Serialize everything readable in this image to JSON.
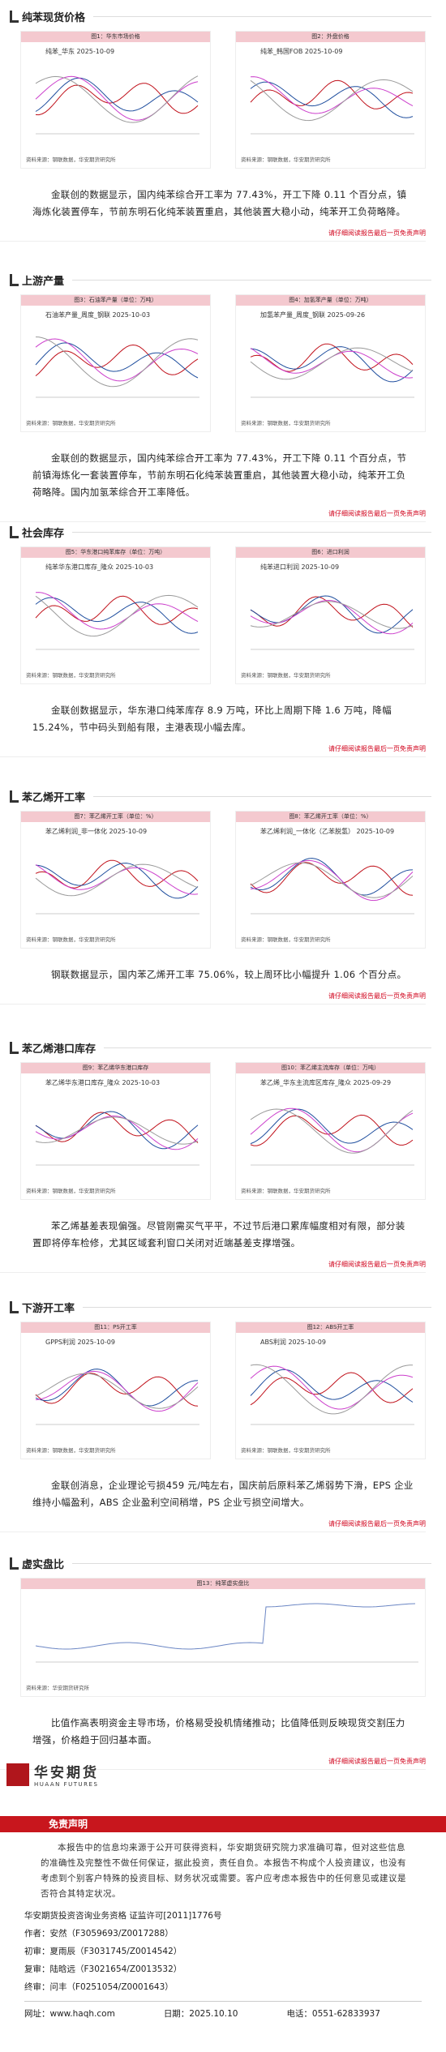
{
  "sections": [
    {
      "heading": "纯苯现货价格",
      "figures": [
        {
          "label": "图1：华东市场价格",
          "title": "纯苯_华东 2025-10-09",
          "source": "资料来源：钢联数据，华安期货研究所"
        },
        {
          "label": "图2：外盘价格",
          "title": "纯苯_韩国FOB 2025-10-09",
          "source": "资料来源：钢联数据，华安期货研究所"
        }
      ],
      "paragraph": "金联创的数据显示，国内纯苯综合开工率为 77.43%，开工下降 0.11 个百分点，镇海炼化装置停车，节前东明石化纯苯装置重启，其他装置大稳小动，纯苯开工负荷略降。",
      "notice": "请仔细阅读报告最后一页免责声明"
    },
    {
      "heading": "上游产量",
      "figures": [
        {
          "label": "图3：石油苯产量（单位：万吨）",
          "title": "石油苯产量_周度_钢联 2025-10-03",
          "source": "资料来源：钢联数据，华安期货研究所"
        },
        {
          "label": "图4：加氢苯产量（单位：万吨）",
          "title": "加氢苯产量_周度_钢联 2025-09-26",
          "source": "资料来源：钢联数据，华安期货研究所"
        }
      ],
      "paragraph": "金联创的数据显示，国内纯苯综合开工率为 77.43%，开工下降 0.11 个百分点，节前镇海炼化一套装置停车，节前东明石化纯苯装置重启，其他装置大稳小动，纯苯开工负荷略降。国内加氢苯综合开工率降低。",
      "notice": "请仔细阅读报告最后一页免责声明"
    },
    {
      "heading": "社会库存",
      "figures": [
        {
          "label": "图5：华东港口纯苯库存（单位：万吨）",
          "title": "纯苯华东港口库存_隆众 2025-10-03",
          "source": "资料来源：钢联数据，华安期货研究所"
        },
        {
          "label": "图6：进口利润",
          "title": "纯苯进口利润 2025-10-09",
          "source": "资料来源：钢联数据，华安期货研究所"
        }
      ],
      "paragraph": "金联创数据显示，华东港口纯苯库存 8.9 万吨，环比上周期下降 1.6 万吨，降幅 15.24%，节中码头到船有限，主港表现小幅去库。",
      "notice": "请仔细阅读报告最后一页免责声明"
    },
    {
      "heading": "苯乙烯开工率",
      "figures": [
        {
          "label": "图7：苯乙烯开工率（单位：%）",
          "title": "苯乙烯利润_非一体化 2025-10-09",
          "source": "资料来源：钢联数据，华安期货研究所"
        },
        {
          "label": "图8：苯乙烯开工率（单位：%）",
          "title": "苯乙烯利润_一体化（乙苯脱氢） 2025-10-09",
          "source": "资料来源：钢联数据，华安期货研究所"
        }
      ],
      "paragraph": "钢联数据显示，国内苯乙烯开工率 75.06%，较上周环比小幅提升 1.06 个百分点。",
      "notice": "请仔细阅读报告最后一页免责声明"
    },
    {
      "heading": "苯乙烯港口库存",
      "figures": [
        {
          "label": "图9：苯乙烯华东港口库存",
          "title": "苯乙烯华东港口库存_隆众 2025-10-03",
          "source": "资料来源：钢联数据，华安期货研究所"
        },
        {
          "label": "图10：苯乙烯主流库存（单位：万吨）",
          "title": "苯乙烯_华东主流库区库存_隆众 2025-09-29",
          "source": "资料来源：钢联数据，华安期货研究所"
        }
      ],
      "paragraph": "苯乙烯基差表现偏强。尽管刚需买气平平，不过节后港口累库幅度相对有限，部分装置即将停车检修，尤其区域套利窗口关闭对近端基差支撑增强。",
      "notice": "请仔细阅读报告最后一页免责声明"
    },
    {
      "heading": "下游开工率",
      "figures": [
        {
          "label": "图11：PS开工率",
          "title": "GPPS利润 2025-10-09",
          "source": "资料来源：钢联数据，华安期货研究所"
        },
        {
          "label": "图12：ABS开工率",
          "title": "ABS利润 2025-10-09",
          "source": "资料来源：钢联数据，华安期货研究所"
        }
      ],
      "paragraph": "金联创消息，企业理论亏损459 元/吨左右，国庆前后原料苯乙烯弱势下滑，EPS 企业维持小幅盈利，ABS 企业盈利空间稍增，PS 企业亏损空间增大。",
      "notice": "请仔细阅读报告最后一页免责声明"
    },
    {
      "heading": "虚实盘比",
      "figures": [
        {
          "label": "图13：纯苯虚实盘比",
          "title": "",
          "source": "资料来源：华安期货研究所"
        }
      ],
      "paragraph": "比值作高表明资金主导市场，价格易受投机情绪推动；比值降低则反映现货交割压力增强，价格趋于回归基本面。",
      "notice": "请仔细阅读报告最后一页免责声明"
    }
  ],
  "footer": {
    "logo_cn": "华安期货",
    "logo_en": "HUAAN FUTURES",
    "disclaimer_title": "免责声明",
    "disclaimer": "本报告中的信息均来源于公开可获得资料，华安期货研究院力求准确可靠，但对这些信息的准确性及完整性不做任何保证，据此投资，责任自负。本报告不构成个人投资建议，也没有考虑到个别客户特殊的投资目标、财务状况或需要。客户应考虑本报告中的任何意见或建议是否符合其特定状况。",
    "qualification": "华安期货投资咨询业务资格 证监许可[2011]1776号",
    "author": "作者：安然（F3059693/Z0017288）",
    "first_review": "初审：夏雨辰（F3031745/Z0014542）",
    "second_review": "复审：陆晗远（F3021654/Z0013532）",
    "final_review": "终审：问丰（F0251054/Z0001643）",
    "website": "网址：www.haqh.com",
    "date": "日期：2025.10.10",
    "phone": "电话：0551-62833937"
  }
}
